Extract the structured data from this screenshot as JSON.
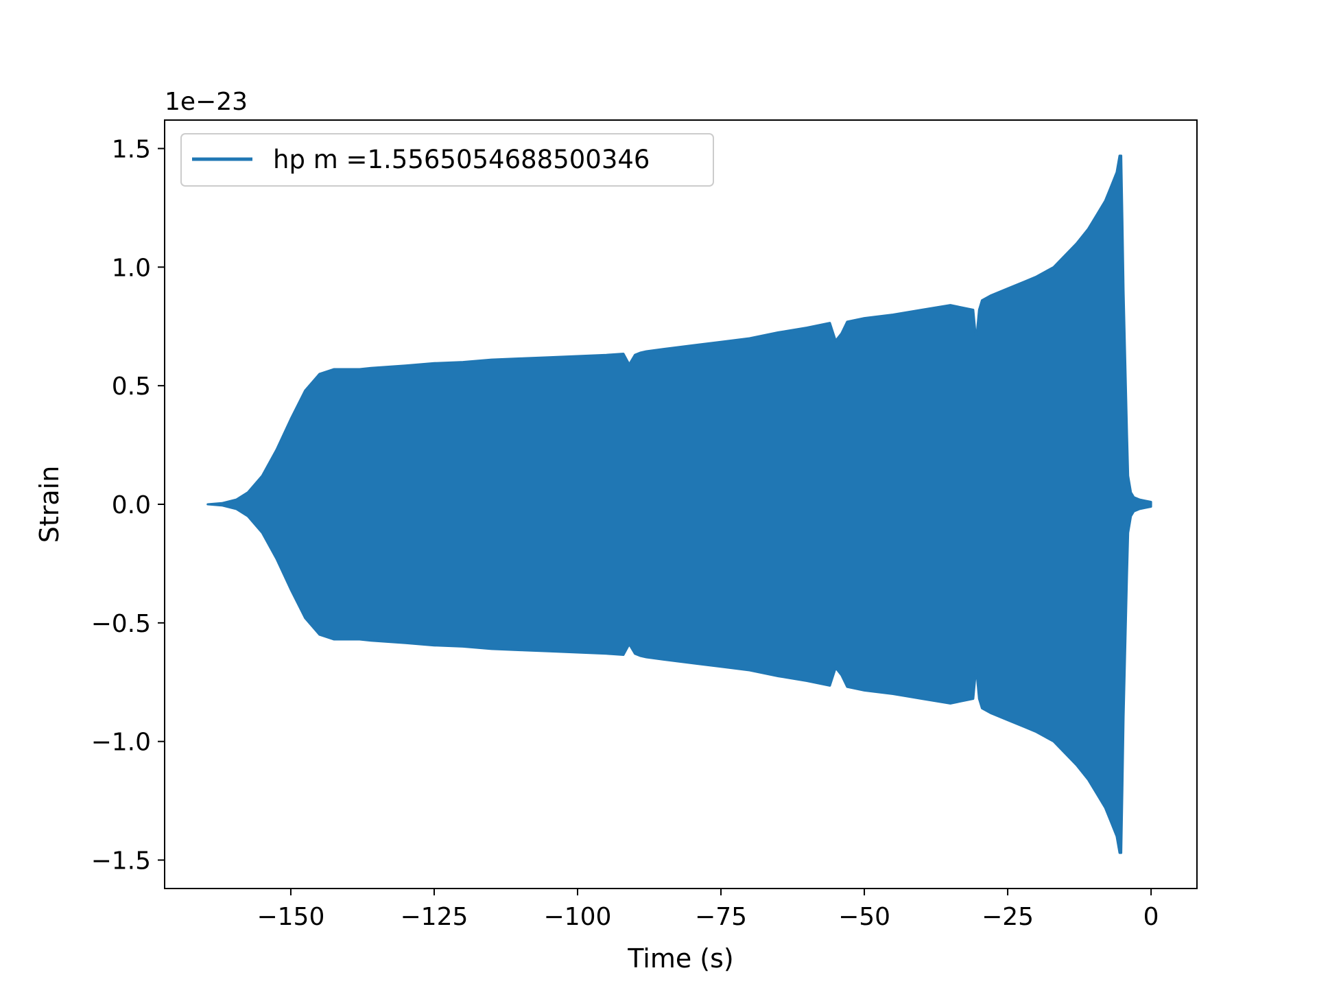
{
  "chart_data": {
    "type": "area",
    "title": "",
    "xlabel": "Time (s)",
    "ylabel": "Strain",
    "y_offset_label": "1e−23",
    "xlim": [
      -172,
      8
    ],
    "ylim": [
      -1.62,
      1.62
    ],
    "xticks": [
      -150,
      -125,
      -100,
      -75,
      -50,
      -25,
      0
    ],
    "xtick_labels": [
      "−150",
      "−125",
      "−100",
      "−75",
      "−50",
      "−25",
      "0"
    ],
    "yticks": [
      1.5,
      1.0,
      0.5,
      0.0,
      -0.5,
      -1.0,
      -1.5
    ],
    "ytick_labels": [
      "1.5",
      "1.0",
      "0.5",
      "0.0",
      "−0.5",
      "−1.0",
      "−1.5"
    ],
    "legend_position": "top-left",
    "series": [
      {
        "name": "hp m =1.5565054688500346",
        "color": "#2077b4",
        "envelope_upper": {
          "x": [
            -164.5,
            -162,
            -159.5,
            -157.5,
            -155,
            -152.5,
            -150,
            -147.5,
            -145,
            -142.5,
            -140,
            -138,
            -136,
            -133,
            -130,
            -125,
            -120,
            -115,
            -110,
            -105,
            -100,
            -95,
            -92,
            -91,
            -90,
            -89,
            -88,
            -85,
            -80,
            -75,
            -70,
            -65,
            -60,
            -56,
            -55,
            -54,
            -53,
            -50,
            -45,
            -40,
            -35,
            -31,
            -30.5,
            -30,
            -29.5,
            -28,
            -25,
            -22,
            -20,
            -17,
            -15,
            -13,
            -11,
            -9.5,
            -8,
            -7,
            -6,
            -5.5,
            -5.2,
            -5,
            -4.8,
            -4.5,
            -4.2,
            -4,
            -3.5,
            -3,
            -2,
            -1,
            0
          ],
          "y": [
            0.0,
            0.005,
            0.02,
            0.05,
            0.12,
            0.23,
            0.36,
            0.48,
            0.55,
            0.57,
            0.57,
            0.57,
            0.575,
            0.58,
            0.585,
            0.595,
            0.6,
            0.61,
            0.615,
            0.62,
            0.625,
            0.63,
            0.635,
            0.59,
            0.63,
            0.64,
            0.645,
            0.655,
            0.67,
            0.685,
            0.7,
            0.725,
            0.745,
            0.765,
            0.69,
            0.72,
            0.77,
            0.785,
            0.8,
            0.82,
            0.84,
            0.82,
            0.69,
            0.82,
            0.86,
            0.88,
            0.91,
            0.94,
            0.96,
            1.0,
            1.05,
            1.1,
            1.16,
            1.22,
            1.28,
            1.34,
            1.4,
            1.47,
            1.47,
            1.2,
            0.9,
            0.6,
            0.3,
            0.12,
            0.05,
            0.03,
            0.02,
            0.015,
            0.01
          ]
        },
        "envelope_lower": {
          "x": [
            -164.5,
            -162,
            -159.5,
            -157.5,
            -155,
            -152.5,
            -150,
            -147.5,
            -145,
            -142.5,
            -140,
            -138,
            -136,
            -133,
            -130,
            -125,
            -120,
            -115,
            -110,
            -105,
            -100,
            -95,
            -92,
            -91,
            -90,
            -89,
            -88,
            -85,
            -80,
            -75,
            -70,
            -65,
            -60,
            -56,
            -55,
            -54,
            -53,
            -50,
            -45,
            -40,
            -35,
            -31,
            -30.5,
            -30,
            -29.5,
            -28,
            -25,
            -22,
            -20,
            -17,
            -15,
            -13,
            -11,
            -9.5,
            -8,
            -7,
            -6,
            -5.5,
            -5.2,
            -5,
            -4.8,
            -4.5,
            -4.2,
            -4,
            -3.5,
            -3,
            -2,
            -1,
            0
          ],
          "y": [
            0.0,
            -0.005,
            -0.02,
            -0.05,
            -0.12,
            -0.23,
            -0.36,
            -0.48,
            -0.55,
            -0.57,
            -0.57,
            -0.57,
            -0.575,
            -0.58,
            -0.585,
            -0.595,
            -0.6,
            -0.61,
            -0.615,
            -0.62,
            -0.625,
            -0.63,
            -0.635,
            -0.59,
            -0.63,
            -0.64,
            -0.645,
            -0.655,
            -0.67,
            -0.685,
            -0.7,
            -0.725,
            -0.745,
            -0.765,
            -0.69,
            -0.72,
            -0.77,
            -0.785,
            -0.8,
            -0.82,
            -0.84,
            -0.82,
            -0.69,
            -0.82,
            -0.86,
            -0.88,
            -0.91,
            -0.94,
            -0.96,
            -1.0,
            -1.05,
            -1.1,
            -1.16,
            -1.22,
            -1.28,
            -1.34,
            -1.4,
            -1.47,
            -1.47,
            -1.2,
            -0.9,
            -0.6,
            -0.3,
            -0.12,
            -0.05,
            -0.03,
            -0.02,
            -0.015,
            -0.01
          ]
        }
      }
    ]
  }
}
